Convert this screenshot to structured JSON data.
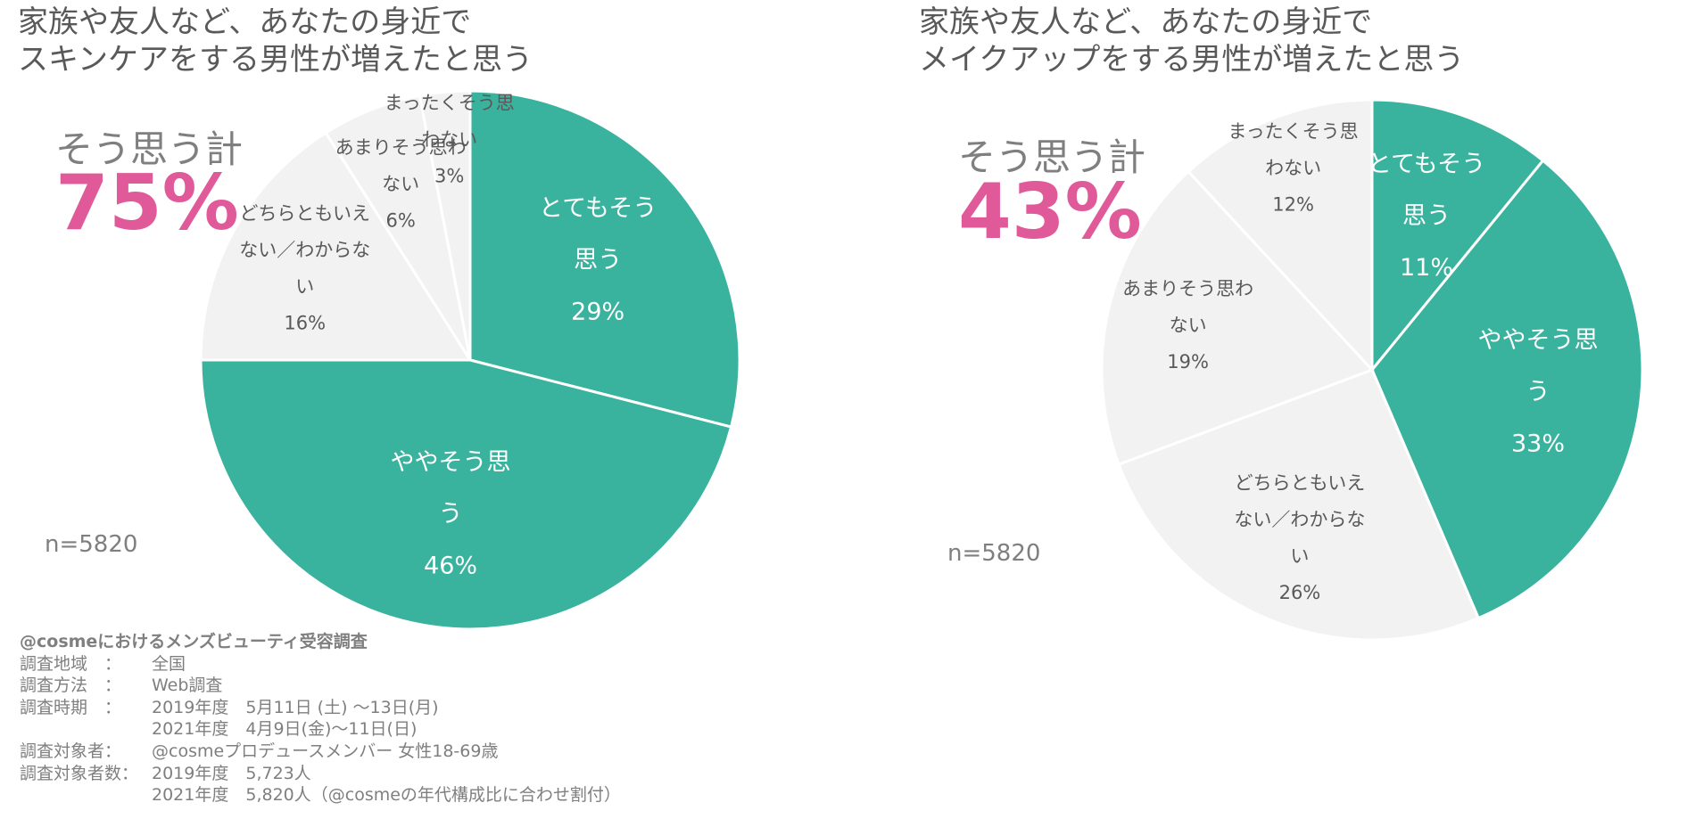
{
  "colors": {
    "agree": "#39B29E",
    "disagree": "#F2F2F2",
    "accent_pink": "#E05A9A",
    "text_gray": "#595959",
    "light_text": "#7f7f7f"
  },
  "chart_data": [
    {
      "type": "pie",
      "title": "家族や友人など、あなたの身近でスキンケアをする男性が増えたと思う",
      "title_lines": [
        "家族や友人など、あなたの身近で",
        "スキンケアをする男性が増えたと思う"
      ],
      "sum_label": "そう思う計",
      "sum_value": "75%",
      "n_label": "n=5820",
      "slices": [
        {
          "label": "とてもそう思う",
          "label_lines": [
            "とてもそう",
            "思う"
          ],
          "value": 29,
          "value_label": "29%",
          "color": "#39B29E",
          "text_color": "#ffffff"
        },
        {
          "label": "ややそう思う",
          "label_lines": [
            "ややそう思",
            "う"
          ],
          "value": 46,
          "value_label": "46%",
          "color": "#39B29E",
          "text_color": "#ffffff"
        },
        {
          "label": "どちらともいえない／わからない",
          "label_lines": [
            "どちらともいえ",
            "ない／わからな",
            "い"
          ],
          "value": 16,
          "value_label": "16%",
          "color": "#F2F2F2",
          "text_color": "#595959"
        },
        {
          "label": "あまりそう思わない",
          "label_lines": [
            "あまりそう思わ",
            "ない"
          ],
          "value": 6,
          "value_label": "6%",
          "color": "#F2F2F2",
          "text_color": "#595959"
        },
        {
          "label": "まったくそう思わない",
          "label_lines": [
            "まったくそう思",
            "わない"
          ],
          "value": 3,
          "value_label": "3%",
          "color": "#F2F2F2",
          "text_color": "#595959"
        }
      ]
    },
    {
      "type": "pie",
      "title": "家族や友人など、あなたの身近でメイクアップをする男性が増えたと思う",
      "title_lines": [
        "家族や友人など、あなたの身近で",
        "メイクアップをする男性が増えたと思う"
      ],
      "sum_label": "そう思う計",
      "sum_value": "43%",
      "n_label": "n=5820",
      "slices": [
        {
          "label": "とてもそう思う",
          "label_lines": [
            "とてもそう",
            "思う"
          ],
          "value": 11,
          "value_label": "11%",
          "color": "#39B29E",
          "text_color": "#ffffff"
        },
        {
          "label": "ややそう思う",
          "label_lines": [
            "ややそう思",
            "う"
          ],
          "value": 33,
          "value_label": "33%",
          "color": "#39B29E",
          "text_color": "#ffffff"
        },
        {
          "label": "どちらともいえない／わからない",
          "label_lines": [
            "どちらともいえ",
            "ない／わからな",
            "い"
          ],
          "value": 26,
          "value_label": "26%",
          "color": "#F2F2F2",
          "text_color": "#595959"
        },
        {
          "label": "あまりそう思わない",
          "label_lines": [
            "あまりそう思わ",
            "ない"
          ],
          "value": 19,
          "value_label": "19%",
          "color": "#F2F2F2",
          "text_color": "#595959"
        },
        {
          "label": "まったくそう思わない",
          "label_lines": [
            "まったくそう思",
            "わない"
          ],
          "value": 12,
          "value_label": "12%",
          "color": "#F2F2F2",
          "text_color": "#595959"
        }
      ]
    }
  ],
  "survey": {
    "title": "@cosmeにおけるメンズビューティ受容調査",
    "rows": [
      {
        "key": "調査地域　：",
        "value": "全国"
      },
      {
        "key": "調査方法　：",
        "value": "Web調査"
      },
      {
        "key": "調査時期　：",
        "value": "2019年度　5月11日 (土) ～13日(月)"
      },
      {
        "key": "",
        "value": "2021年度　4月9日(金)～11日(日)"
      },
      {
        "key": "調査対象者：",
        "value": "@cosmeプロデュースメンバー 女性18-69歳"
      },
      {
        "key": "調査対象者数：",
        "value": "2019年度　5,723人"
      },
      {
        "key": "",
        "value": "2021年度　5,820人（@cosmeの年代構成比に合わせ割付）"
      }
    ]
  }
}
